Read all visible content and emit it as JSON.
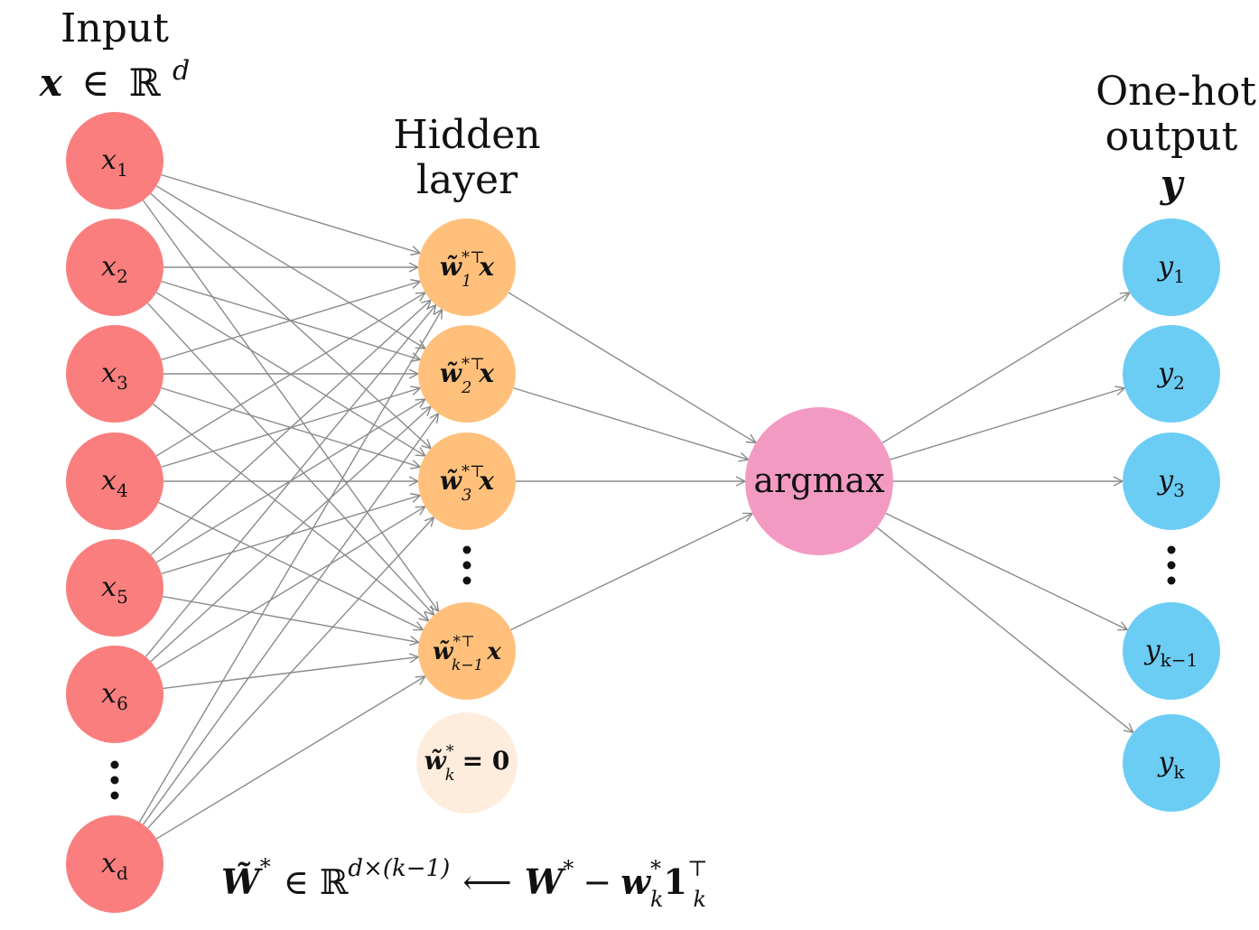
{
  "input_title": {
    "line1": "Input",
    "x": "x",
    "in": "∈",
    "R": "ℝ",
    "d": "d"
  },
  "hidden_title": {
    "line1": "Hidden",
    "line2": "layer"
  },
  "output_title": {
    "line1": "One-hot",
    "line2": "output",
    "line3": "y"
  },
  "input_nodes": [
    {
      "main": "x",
      "sub": "1"
    },
    {
      "main": "x",
      "sub": "2"
    },
    {
      "main": "x",
      "sub": "3"
    },
    {
      "main": "x",
      "sub": "4"
    },
    {
      "main": "x",
      "sub": "5"
    },
    {
      "main": "x",
      "sub": "6"
    },
    {
      "main": "x",
      "sub": "d"
    }
  ],
  "hidden_nodes": [
    {
      "w": "w̃",
      "sup": "*⊤",
      "sub": "1",
      "x": "x"
    },
    {
      "w": "w̃",
      "sup": "*⊤",
      "sub": "2",
      "x": "x"
    },
    {
      "w": "w̃",
      "sup": "*⊤",
      "sub": "3",
      "x": "x"
    },
    {
      "w": "w̃",
      "sup": "*⊤",
      "sub": "k−1",
      "x": "x"
    }
  ],
  "zero_node": {
    "w": "w̃",
    "sup": "*",
    "sub": "k",
    "eq": "= 0"
  },
  "argmax_label": "argmax",
  "output_nodes": [
    {
      "main": "y",
      "sub": "1"
    },
    {
      "main": "y",
      "sub": "2"
    },
    {
      "main": "y",
      "sub": "3"
    },
    {
      "main": "y",
      "sub": "k−1"
    },
    {
      "main": "y",
      "sub": "k"
    }
  ],
  "formula": {
    "W_tilde": "W̃",
    "star": "*",
    "in": "∈",
    "R": "ℝ",
    "dims": "d×(k−1)",
    "arrow": "⟵",
    "W": "W",
    "star2": "*",
    "minus": "−",
    "w": "w",
    "w_sup": "*",
    "w_sub": "k",
    "one": "1",
    "one_sup": "⊤",
    "one_sub": "k"
  },
  "colors": {
    "input": "#fa7e7e",
    "hidden": "#fec07b",
    "zero": "#feeddd",
    "argmax": "#f39ac3",
    "output": "#6ccdf4",
    "edge": "#8a8a8a"
  }
}
